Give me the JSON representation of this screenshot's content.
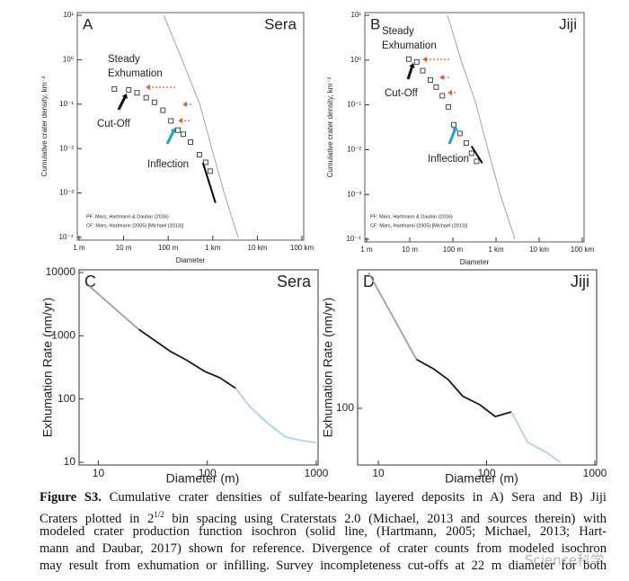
{
  "chart_data": [
    {
      "type": "scatter",
      "panel": "A",
      "name": "Sera",
      "xscale": "log",
      "yscale": "log",
      "xlabel": "Diameter",
      "ylabel": "Cumulative crater density, km⁻²",
      "xlim": [
        1,
        100000
      ],
      "ylim": [
        0.0001,
        10
      ],
      "xticks": [
        {
          "value": 1,
          "label": "1 m"
        },
        {
          "value": 10,
          "label": "10 m"
        },
        {
          "value": 100,
          "label": "100 m"
        },
        {
          "value": 1000,
          "label": "1 km"
        },
        {
          "value": 10000,
          "label": "10 km"
        },
        {
          "value": 100000,
          "label": "100 km"
        }
      ],
      "yticks": [
        {
          "value": 0.0001,
          "label": "10⁻⁴"
        },
        {
          "value": 0.001,
          "label": "10⁻³"
        },
        {
          "value": 0.01,
          "label": "10⁻²"
        },
        {
          "value": 0.1,
          "label": "10⁻¹"
        },
        {
          "value": 1,
          "label": "10⁰"
        },
        {
          "value": 10,
          "label": "10¹"
        }
      ],
      "annotations": [
        "Steady",
        "Exhumation",
        "Cut-Off",
        "Inflection"
      ],
      "notes": [
        "PF: Mars, Hartmann & Daubar (2016)",
        "CF: Mars, Hartmann (2005) [Michael (2013)]"
      ],
      "series": [
        {
          "mode": "line",
          "color": "#9a9a9a",
          "x": [
            79,
            205,
            510,
            950,
            1800,
            3700
          ],
          "values": [
            10,
            1,
            0.1,
            0.01,
            0.001,
            0.0001
          ]
        },
        {
          "mode": "markers",
          "color": "#333333",
          "x": [
            6.2,
            13,
            20,
            32,
            49,
            76,
            115,
            166,
            219,
            316,
            501,
            692,
            871
          ],
          "values": [
            0.22,
            0.21,
            0.18,
            0.14,
            0.11,
            0.073,
            0.042,
            0.026,
            0.021,
            0.014,
            0.0073,
            0.0049,
            0.0031
          ]
        },
        {
          "mode": "line",
          "color": "#000000",
          "x": [
            600,
            1150
          ],
          "values": [
            0.0048,
            0.0006
          ]
        }
      ]
    },
    {
      "type": "scatter",
      "panel": "B",
      "name": "Jiji",
      "xscale": "log",
      "yscale": "log",
      "xlabel": "Diameter",
      "ylabel": "Cumulative crater density, km⁻²",
      "xlim": [
        1,
        100000
      ],
      "ylim": [
        0.0001,
        10
      ],
      "xticks": [
        {
          "value": 1,
          "label": "1 m"
        },
        {
          "value": 10,
          "label": "10 m"
        },
        {
          "value": 100,
          "label": "100 m"
        },
        {
          "value": 1000,
          "label": "1 km"
        },
        {
          "value": 10000,
          "label": "10 km"
        },
        {
          "value": 100000,
          "label": "100 km"
        }
      ],
      "yticks": [
        {
          "value": 0.0001,
          "label": "10⁻⁴"
        },
        {
          "value": 0.001,
          "label": "10⁻³"
        },
        {
          "value": 0.01,
          "label": "10⁻²"
        },
        {
          "value": 0.1,
          "label": "10⁻¹"
        },
        {
          "value": 1,
          "label": "10⁰"
        },
        {
          "value": 10,
          "label": "10¹"
        }
      ],
      "annotations": [
        "Steady",
        "Exhumation",
        "Cut-Off",
        "Inflection"
      ],
      "notes": [
        "PF: Mars, Hartmann & Daubar (2016)",
        "CF: Mars, Hartmann (2005) [Michael (2013)]"
      ],
      "series": [
        {
          "mode": "line",
          "color": "#9a9a9a",
          "x": [
            75,
            155,
            350,
            650,
            1260,
            2750
          ],
          "values": [
            10,
            1,
            0.1,
            0.01,
            0.001,
            0.0001
          ]
        },
        {
          "mode": "markers",
          "color": "#333333",
          "x": [
            9.5,
            14.5,
            20,
            30,
            41,
            57,
            79,
            105,
            145,
            204,
            270,
            355
          ],
          "values": [
            1.05,
            0.91,
            0.58,
            0.36,
            0.25,
            0.16,
            0.09,
            0.036,
            0.023,
            0.014,
            0.0083,
            0.0055
          ]
        },
        {
          "mode": "line",
          "color": "#000000",
          "x": [
            270,
            480
          ],
          "values": [
            0.012,
            0.005
          ]
        }
      ]
    },
    {
      "type": "line",
      "panel": "C",
      "name": "Sera",
      "xscale": "log",
      "yscale": "log",
      "xlabel": "Diameter (m)",
      "ylabel": "Exhumation Rate (nm/yr)",
      "xlim": [
        8.2,
        1000
      ],
      "ylim": [
        10,
        10000
      ],
      "xticks": [
        10,
        100,
        1000
      ],
      "yticks": [
        10,
        100,
        1000,
        10000
      ],
      "series": [
        {
          "mode": "line",
          "color": "#a0a0a0",
          "x": [
            8.2,
            23.5
          ],
          "values": [
            6150,
            1260
          ]
        },
        {
          "mode": "line",
          "color": "#1a1a1a",
          "x": [
            23.5,
            46,
            65,
            94,
            130,
            182
          ],
          "values": [
            1260,
            565,
            410,
            275,
            218,
            148
          ]
        },
        {
          "mode": "line",
          "color": "#a9d4ee",
          "x": [
            182,
            245,
            355,
            525,
            740,
            1000
          ],
          "values": [
            148,
            76,
            42,
            25,
            22,
            20.5
          ]
        }
      ]
    },
    {
      "type": "line",
      "panel": "D",
      "name": "Jiji",
      "xscale": "log",
      "yscale": "log",
      "xlabel": "Diameter (m)",
      "ylabel": "Exhumation Rate (nm/yr)",
      "xlim": [
        8.1,
        1000
      ],
      "ylim": [
        40,
        1000
      ],
      "xticks": [
        10,
        100,
        1000
      ],
      "yticks": [
        100
      ],
      "series": [
        {
          "mode": "line",
          "color": "#a0a0a0",
          "x": [
            8.1,
            22.5
          ],
          "values": [
            1000,
            229
          ]
        },
        {
          "mode": "line",
          "color": "#1a1a1a",
          "x": [
            22.5,
            32,
            44,
            60,
            87,
            120,
            170
          ],
          "values": [
            229,
            196,
            163,
            123,
            106,
            87,
            94
          ]
        },
        {
          "mode": "line",
          "color": "#a9d4ee",
          "x": [
            170,
            240,
            363,
            480
          ],
          "values": [
            94,
            56,
            47,
            40
          ]
        }
      ]
    }
  ],
  "caption": {
    "label": "Figure S3.",
    "line1": "Cumulative crater densities of sulfate-bearing layered deposits in A) Sera and B) Jiji",
    "line2a": "Craters plotted in 2",
    "line2sup": "1/2",
    "line2b": "bin spacing using Craterstats 2.0 (Michael, 2013 and sources therein) with",
    "line3": "modeled crater production function isochron (solid line, (Hartmann, 2005; Michael, 2013; Hart-",
    "line4": "mann and Daubar, 2017) shown for reference. Divergence of crater counts from modeled isochron",
    "line5": "may result from exhumation or infilling. Survey incompleteness cut-offs at 22 m diameter for both"
  },
  "watermark": "Science科学"
}
